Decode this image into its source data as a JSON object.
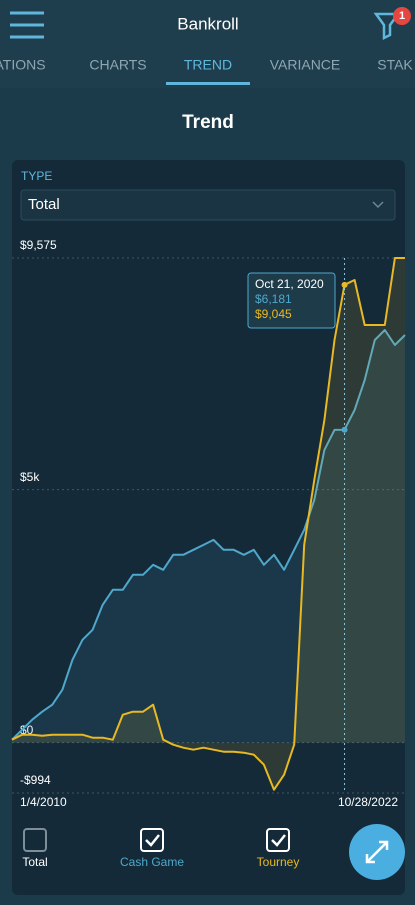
{
  "header": {
    "title": "Bankroll",
    "badge": "1"
  },
  "tabs": [
    "ATIONS",
    "CHARTS",
    "TREND",
    "VARIANCE",
    "STAK"
  ],
  "active_tab": "TREND",
  "section_title": "Trend",
  "type_filter": {
    "label": "TYPE",
    "selected": "Total"
  },
  "chart_data": {
    "type": "line",
    "categories": [
      "1/4/2010",
      null,
      null,
      null,
      null,
      null,
      null,
      null,
      null,
      null,
      null,
      null,
      null,
      null,
      null,
      null,
      null,
      null,
      null,
      null,
      null,
      null,
      null,
      null,
      null,
      null,
      null,
      null,
      null,
      null,
      null,
      null,
      null,
      null,
      null,
      null,
      null,
      null,
      null,
      "10/28/2022"
    ],
    "series": [
      {
        "name": "Cash Game",
        "color": "#4fa8cc",
        "values": [
          59,
          257,
          454,
          612,
          750,
          1046,
          1639,
          2033,
          2231,
          2724,
          3020,
          3020,
          3316,
          3316,
          3514,
          3415,
          3711,
          3711,
          3810,
          3908,
          4007,
          3810,
          3810,
          3711,
          3810,
          3514,
          3711,
          3415,
          3810,
          4205,
          4797,
          5784,
          6179,
          6181,
          6573,
          7165,
          7955,
          8152,
          7856,
          8053
        ]
      },
      {
        "name": "Tourney",
        "color": "#e8b923",
        "values": [
          59,
          158,
          158,
          138,
          158,
          158,
          158,
          158,
          99,
          99,
          59,
          553,
          612,
          612,
          750,
          59,
          -39,
          -99,
          -138,
          -99,
          -138,
          -178,
          -178,
          -197,
          -237,
          -434,
          -928,
          -632,
          -39,
          3909,
          5192,
          6376,
          7955,
          9045,
          9140,
          8251,
          8251,
          8251,
          9575,
          9575
        ]
      }
    ],
    "ylim": [
      -994,
      9575
    ],
    "yticks": [
      {
        "value": -994,
        "label": "-$994"
      },
      {
        "value": 0,
        "label": "$0"
      },
      {
        "value": 5000,
        "label": "$5k"
      },
      {
        "value": 9575,
        "label": "$9,575"
      }
    ],
    "grid": true,
    "tooltip": {
      "label": "Oct 21, 2020",
      "values": [
        6181,
        9045
      ],
      "value_labels": [
        "$6,181",
        "$9,045"
      ]
    }
  },
  "toggles": [
    {
      "label": "Total",
      "checked": false
    },
    {
      "checked": true
    },
    {
      "checked": true
    }
  ]
}
